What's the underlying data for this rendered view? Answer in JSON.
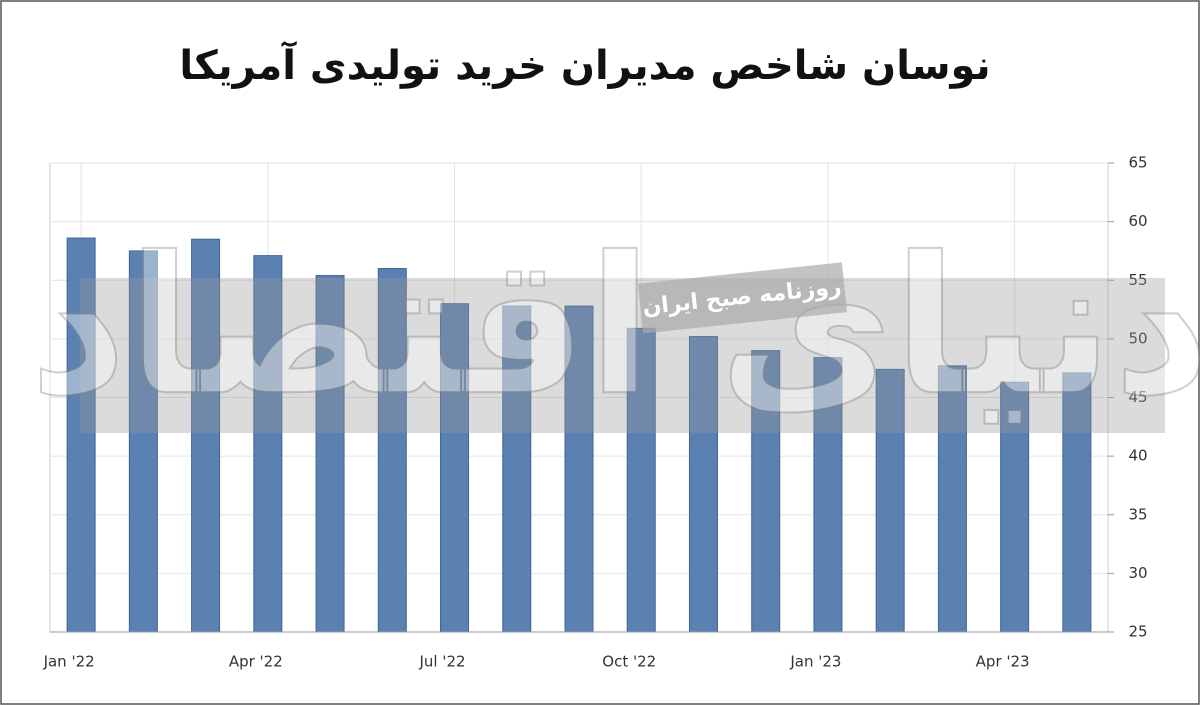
{
  "chart_data": {
    "type": "bar",
    "title": "نوسان شاخص مدیران خرید تولیدی آمریکا",
    "watermark": "روزنامه صبح ایران",
    "logo": "دنیای اقتصاد",
    "categories": [
      "Jan '22",
      null,
      null,
      "Apr '22",
      null,
      null,
      "Jul '22",
      null,
      null,
      "Oct '22",
      null,
      null,
      "Jan '23",
      null,
      null,
      "Apr '23",
      null
    ],
    "values": [
      58.6,
      57.5,
      58.5,
      57.1,
      55.4,
      56.0,
      53.0,
      52.8,
      52.8,
      50.9,
      50.2,
      49.0,
      48.4,
      47.4,
      47.7,
      46.3,
      47.1
    ],
    "color": "#5b80b2",
    "ylim": [
      25,
      65
    ],
    "yticks": [
      25,
      30,
      35,
      40,
      45,
      50,
      55,
      60,
      65
    ],
    "grid": true
  }
}
